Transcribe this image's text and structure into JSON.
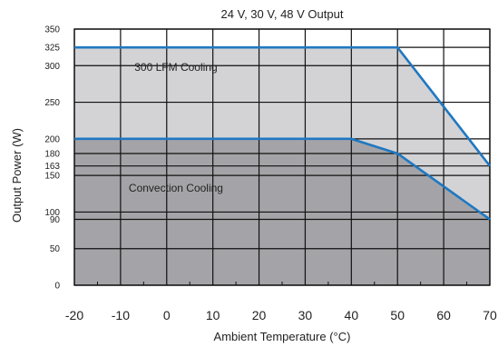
{
  "chart_data": {
    "type": "area",
    "title": "24 V, 30 V, 48 V Output",
    "xlabel": "Ambient Temperature (°C)",
    "ylabel": "Output Power (W)",
    "xlim": [
      -20,
      70
    ],
    "ylim": [
      0,
      350
    ],
    "x_ticks": [
      -20,
      -10,
      0,
      10,
      20,
      30,
      40,
      50,
      60,
      70
    ],
    "y_ticks": [
      0,
      50,
      90,
      100,
      150,
      163,
      180,
      200,
      250,
      300,
      325,
      350
    ],
    "grid": true,
    "series": [
      {
        "name": "300 LFM Cooling",
        "x": [
          -20,
          50,
          70
        ],
        "y": [
          325,
          325,
          163
        ],
        "fill_color": "#d3d3d6",
        "line_color": "#1f78c1"
      },
      {
        "name": "Convection Cooling",
        "x": [
          -20,
          40,
          50,
          70
        ],
        "y": [
          200,
          200,
          180,
          90
        ],
        "fill_color": "#a4a4a8",
        "line_color": "#1f78c1"
      }
    ],
    "annotations": [
      {
        "text": "300 LFM Cooling",
        "x": 2,
        "y": 298
      },
      {
        "text": "Convection Cooling",
        "x": 2,
        "y": 133
      }
    ]
  }
}
